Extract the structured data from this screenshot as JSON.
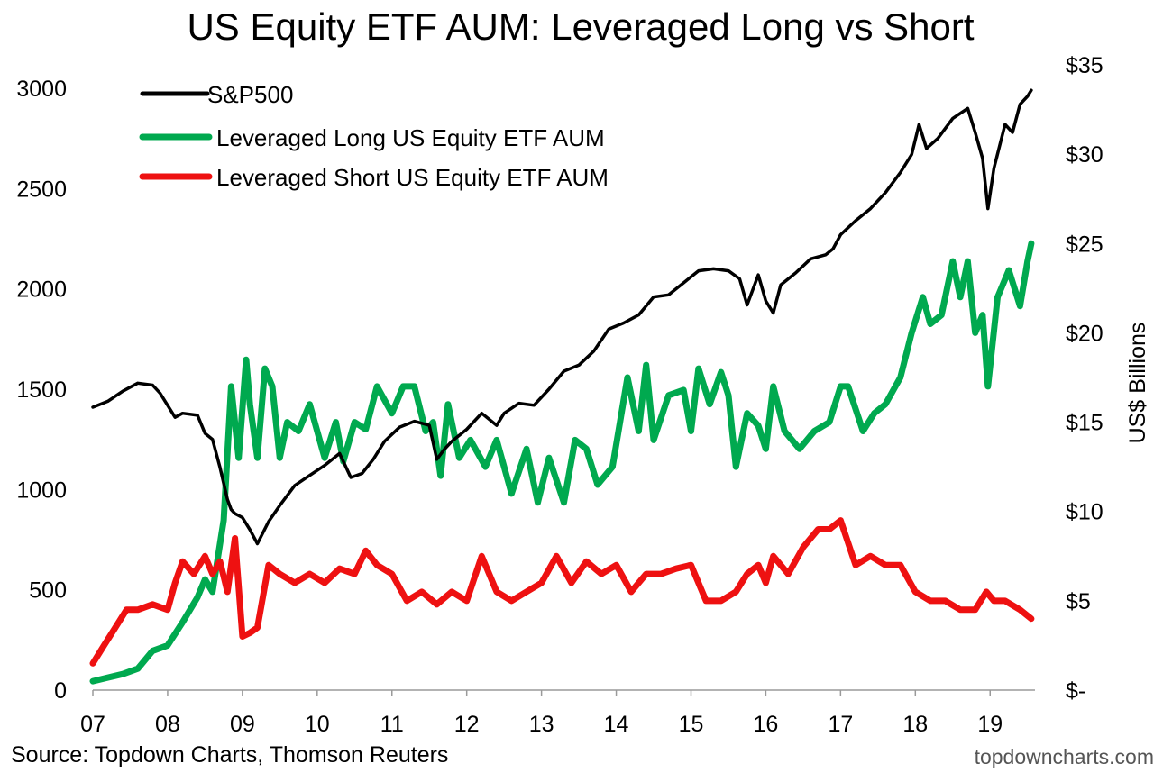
{
  "chart_data": {
    "type": "line",
    "title": "US Equity ETF AUM: Leveraged Long vs Short",
    "x_ticks": [
      "07",
      "08",
      "09",
      "10",
      "11",
      "12",
      "13",
      "14",
      "15",
      "16",
      "17",
      "18",
      "19"
    ],
    "x_range": [
      2007.0,
      2019.6
    ],
    "y_left": {
      "ticks": [
        "0",
        "500",
        "1000",
        "1500",
        "2000",
        "2500",
        "3000"
      ],
      "range": [
        0,
        3000
      ],
      "label": ""
    },
    "y_right": {
      "ticks": [
        "$-",
        "$5",
        "$10",
        "$15",
        "$20",
        "$25",
        "$30",
        "$35"
      ],
      "range": [
        0,
        35
      ],
      "label": "US$ Billions"
    },
    "legend": [
      "S&P500",
      "Leveraged Long US Equity ETF AUM",
      "Leveraged Short US Equity ETF AUM"
    ],
    "series": [
      {
        "name": "S&P500",
        "axis": "left",
        "color": "#000000",
        "x": [
          2007.0,
          2007.2,
          2007.4,
          2007.6,
          2007.8,
          2007.9,
          2008.1,
          2008.2,
          2008.4,
          2008.5,
          2008.6,
          2008.7,
          2008.8,
          2008.85,
          2008.9,
          2009.0,
          2009.1,
          2009.2,
          2009.35,
          2009.5,
          2009.7,
          2009.9,
          2010.1,
          2010.3,
          2010.45,
          2010.6,
          2010.75,
          2010.9,
          2011.1,
          2011.3,
          2011.5,
          2011.6,
          2011.7,
          2011.8,
          2012.0,
          2012.2,
          2012.4,
          2012.5,
          2012.7,
          2012.9,
          2013.1,
          2013.3,
          2013.5,
          2013.7,
          2013.9,
          2014.1,
          2014.3,
          2014.5,
          2014.7,
          2014.9,
          2015.1,
          2015.3,
          2015.5,
          2015.65,
          2015.75,
          2015.9,
          2016.0,
          2016.1,
          2016.2,
          2016.4,
          2016.6,
          2016.8,
          2016.9,
          2017.0,
          2017.2,
          2017.4,
          2017.6,
          2017.8,
          2017.95,
          2018.05,
          2018.15,
          2018.3,
          2018.5,
          2018.7,
          2018.8,
          2018.9,
          2018.97,
          2019.05,
          2019.2,
          2019.3,
          2019.4,
          2019.5,
          2019.55
        ],
        "values": [
          1410,
          1440,
          1490,
          1530,
          1520,
          1480,
          1360,
          1380,
          1370,
          1280,
          1250,
          1110,
          950,
          900,
          880,
          860,
          800,
          730,
          840,
          920,
          1020,
          1070,
          1120,
          1180,
          1060,
          1080,
          1150,
          1240,
          1310,
          1340,
          1320,
          1150,
          1200,
          1240,
          1300,
          1380,
          1320,
          1380,
          1430,
          1420,
          1500,
          1590,
          1620,
          1690,
          1800,
          1830,
          1870,
          1960,
          1970,
          2030,
          2090,
          2100,
          2090,
          2050,
          1920,
          2070,
          1940,
          1880,
          2020,
          2080,
          2150,
          2170,
          2200,
          2270,
          2340,
          2400,
          2480,
          2580,
          2670,
          2820,
          2700,
          2750,
          2850,
          2900,
          2780,
          2650,
          2400,
          2600,
          2820,
          2780,
          2920,
          2960,
          2990
        ]
      },
      {
        "name": "Leveraged Long US Equity ETF AUM",
        "axis": "right",
        "color": "#00a94f",
        "x": [
          2007.0,
          2007.2,
          2007.4,
          2007.6,
          2007.8,
          2008.0,
          2008.2,
          2008.4,
          2008.5,
          2008.6,
          2008.75,
          2008.85,
          2008.95,
          2009.05,
          2009.1,
          2009.2,
          2009.3,
          2009.4,
          2009.5,
          2009.6,
          2009.75,
          2009.9,
          2010.1,
          2010.25,
          2010.35,
          2010.5,
          2010.65,
          2010.8,
          2011.0,
          2011.15,
          2011.3,
          2011.45,
          2011.55,
          2011.65,
          2011.75,
          2011.9,
          2012.05,
          2012.25,
          2012.4,
          2012.6,
          2012.8,
          2012.95,
          2013.1,
          2013.3,
          2013.45,
          2013.6,
          2013.75,
          2013.95,
          2014.05,
          2014.15,
          2014.3,
          2014.4,
          2014.5,
          2014.7,
          2014.9,
          2015.0,
          2015.1,
          2015.25,
          2015.4,
          2015.5,
          2015.6,
          2015.75,
          2015.9,
          2016.0,
          2016.1,
          2016.25,
          2016.45,
          2016.65,
          2016.85,
          2017.0,
          2017.1,
          2017.3,
          2017.45,
          2017.6,
          2017.8,
          2017.95,
          2018.1,
          2018.2,
          2018.35,
          2018.5,
          2018.6,
          2018.7,
          2018.8,
          2018.9,
          2018.97,
          2019.1,
          2019.25,
          2019.4,
          2019.5,
          2019.55
        ],
        "values": [
          0.5,
          0.7,
          0.9,
          1.2,
          2.2,
          2.5,
          3.8,
          5.2,
          6.2,
          5.5,
          9.5,
          17,
          13,
          18.5,
          16,
          13,
          18,
          17,
          13,
          15,
          14.5,
          16,
          13,
          15,
          12.8,
          15,
          14.6,
          17,
          15.5,
          17,
          17,
          14.5,
          15,
          12,
          16,
          13,
          14,
          12.5,
          14,
          11,
          13.5,
          10.5,
          13,
          10.5,
          14,
          13.5,
          11.5,
          12.5,
          15,
          17.5,
          14.5,
          18.2,
          14,
          16.5,
          16.8,
          14.5,
          18,
          16,
          17.8,
          16.5,
          12.5,
          15.5,
          14.8,
          13.5,
          17,
          14.5,
          13.5,
          14.5,
          15,
          17,
          17,
          14.5,
          15.5,
          16,
          17.5,
          20,
          22,
          20.5,
          21,
          24,
          22,
          24,
          20,
          21,
          17,
          22,
          23.5,
          21.5,
          24,
          25
        ]
      },
      {
        "name": "Leveraged Short US Equity ETF AUM",
        "axis": "right",
        "color": "#ee1111",
        "x": [
          2007.0,
          2007.15,
          2007.3,
          2007.45,
          2007.6,
          2007.8,
          2008.0,
          2008.1,
          2008.2,
          2008.35,
          2008.5,
          2008.6,
          2008.7,
          2008.8,
          2008.9,
          2009.0,
          2009.1,
          2009.2,
          2009.35,
          2009.5,
          2009.7,
          2009.9,
          2010.1,
          2010.3,
          2010.5,
          2010.65,
          2010.8,
          2011.0,
          2011.2,
          2011.4,
          2011.6,
          2011.8,
          2012.0,
          2012.2,
          2012.4,
          2012.6,
          2012.8,
          2013.0,
          2013.2,
          2013.4,
          2013.6,
          2013.8,
          2014.0,
          2014.2,
          2014.4,
          2014.6,
          2014.8,
          2015.0,
          2015.2,
          2015.4,
          2015.6,
          2015.75,
          2015.9,
          2016.0,
          2016.1,
          2016.3,
          2016.5,
          2016.7,
          2016.85,
          2017.0,
          2017.2,
          2017.4,
          2017.6,
          2017.8,
          2018.0,
          2018.2,
          2018.4,
          2018.6,
          2018.8,
          2018.95,
          2019.05,
          2019.2,
          2019.4,
          2019.55
        ],
        "values": [
          1.5,
          2.5,
          3.5,
          4.5,
          4.5,
          4.8,
          4.5,
          6.0,
          7.2,
          6.5,
          7.5,
          6.5,
          7.2,
          5.5,
          8.5,
          3.0,
          3.2,
          3.5,
          7.0,
          6.5,
          6.0,
          6.5,
          6.0,
          6.8,
          6.5,
          7.8,
          7.0,
          6.5,
          5.0,
          5.5,
          4.8,
          5.5,
          5.0,
          7.5,
          5.5,
          5.0,
          5.5,
          6.0,
          7.5,
          6.0,
          7.2,
          6.5,
          7.0,
          5.5,
          6.5,
          6.5,
          6.8,
          7.0,
          5.0,
          5.0,
          5.5,
          6.5,
          7.0,
          6.0,
          7.5,
          6.5,
          8.0,
          9.0,
          9.0,
          9.5,
          7.0,
          7.5,
          7.0,
          7.0,
          5.5,
          5.0,
          5.0,
          4.5,
          4.5,
          5.5,
          5.0,
          5.0,
          4.5,
          4.0
        ]
      }
    ],
    "source": "Source: Topdown Charts, Thomson Reuters",
    "watermark": "topdowncharts.com"
  }
}
